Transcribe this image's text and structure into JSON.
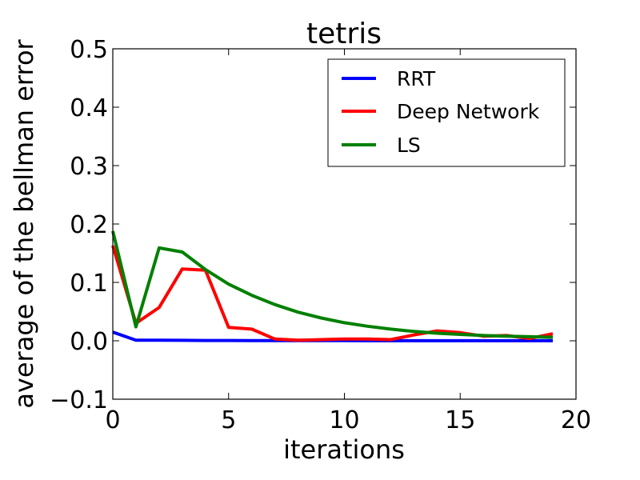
{
  "chart_data": {
    "type": "line",
    "title": "tetris",
    "xlabel": "iterations",
    "ylabel": "average of the bellman error",
    "xlim": [
      0,
      20
    ],
    "ylim": [
      -0.1,
      0.5
    ],
    "xticks": [
      "0",
      "5",
      "10",
      "15",
      "20"
    ],
    "yticks": [
      "−0.1",
      "0.0",
      "0.1",
      "0.2",
      "0.3",
      "0.4",
      "0.5"
    ],
    "ytick_values": [
      -0.1,
      0.0,
      0.1,
      0.2,
      0.3,
      0.4,
      0.5
    ],
    "xtick_values": [
      0,
      5,
      10,
      15,
      20
    ],
    "grid": false,
    "legend_position": "top-right",
    "x": [
      0,
      1,
      2,
      3,
      4,
      5,
      6,
      7,
      8,
      9,
      10,
      11,
      12,
      13,
      14,
      15,
      16,
      17,
      18,
      19
    ],
    "series": [
      {
        "name": "RRT",
        "color": "#0000ff",
        "values": [
          0.015,
          0.001,
          0.001,
          0.0008,
          0.0006,
          0.0005,
          0.0004,
          0.0004,
          0.0003,
          0.0003,
          0.0003,
          0.0002,
          0.0002,
          0.0002,
          0.0002,
          0.0001,
          0.0001,
          0.0001,
          0.0001,
          0.0001
        ]
      },
      {
        "name": "Deep Network",
        "color": "#ff0000",
        "values": [
          0.163,
          0.03,
          0.057,
          0.123,
          0.121,
          0.023,
          0.02,
          0.003,
          0.001,
          0.002,
          0.003,
          0.003,
          0.002,
          0.01,
          0.017,
          0.014,
          0.008,
          0.009,
          0.004,
          0.012
        ]
      },
      {
        "name": "LS",
        "color": "#008000",
        "values": [
          0.188,
          0.024,
          0.159,
          0.152,
          0.122,
          0.097,
          0.078,
          0.062,
          0.049,
          0.039,
          0.031,
          0.025,
          0.02,
          0.016,
          0.013,
          0.011,
          0.009,
          0.008,
          0.007,
          0.006
        ]
      }
    ]
  }
}
